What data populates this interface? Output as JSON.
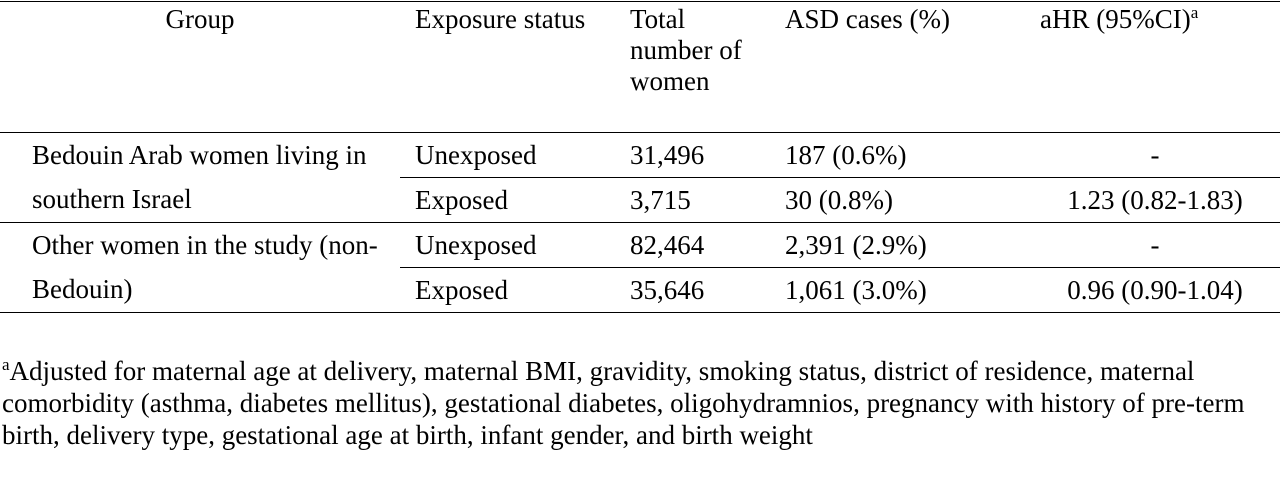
{
  "table": {
    "header": [
      "Group",
      "Exposure status",
      "Total number of women",
      "ASD cases (%)",
      "aHR (95%CI)"
    ],
    "header_marker": "a",
    "groups": [
      {
        "label": "Bedouin Arab women living in southern Israel",
        "rows": [
          [
            "Unexposed",
            "31,496",
            "187 (0.6%)",
            "-"
          ],
          [
            "Exposed",
            "3,715",
            "30 (0.8%)",
            "1.23 (0.82-1.83)"
          ]
        ]
      },
      {
        "label": "Other women in the study (non-Bedouin)",
        "rows": [
          [
            "Unexposed",
            "82,464",
            "2,391 (2.9%)",
            "-"
          ],
          [
            "Exposed",
            "35,646",
            "1,061 (3.0%)",
            "0.96 (0.90-1.04)"
          ]
        ]
      }
    ]
  },
  "footnote": {
    "marker": "a",
    "text": "Adjusted for maternal age at delivery, maternal BMI, gravidity, smoking status, district of residence, maternal comorbidity (asthma, diabetes mellitus), gestational diabetes, oligohydramnios, pregnancy with history of pre-term birth, delivery type, gestational age at birth, infant gender, and birth weight"
  }
}
